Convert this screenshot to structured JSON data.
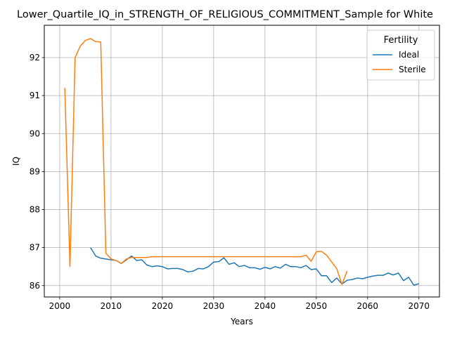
{
  "chart_data": {
    "type": "line",
    "title": "Lower_Quartile_IQ_in_STRENGTH_OF_RELIGIOUS_COMMITMENT_Sample for White",
    "xlabel": "Years",
    "ylabel": "IQ",
    "xlim": [
      1997,
      2074
    ],
    "ylim": [
      85.7,
      92.85
    ],
    "xticks": [
      2000,
      2010,
      2020,
      2030,
      2040,
      2050,
      2060,
      2070
    ],
    "yticks": [
      86,
      87,
      88,
      89,
      90,
      91,
      92
    ],
    "grid": true,
    "legend": {
      "title": "Fertility",
      "placement": "top-right"
    },
    "series": [
      {
        "name": "Ideal",
        "color": "#1f77b4",
        "x": [
          2006,
          2007,
          2008,
          2009,
          2010,
          2011,
          2012,
          2013,
          2014,
          2015,
          2016,
          2017,
          2018,
          2019,
          2020,
          2021,
          2022,
          2023,
          2024,
          2025,
          2026,
          2027,
          2028,
          2029,
          2030,
          2031,
          2032,
          2033,
          2034,
          2035,
          2036,
          2037,
          2038,
          2039,
          2040,
          2041,
          2042,
          2043,
          2044,
          2045,
          2046,
          2047,
          2048,
          2049,
          2050,
          2051,
          2052,
          2053,
          2054,
          2055,
          2056,
          2057,
          2058,
          2059,
          2060,
          2061,
          2062,
          2063,
          2064,
          2065,
          2066,
          2067,
          2068,
          2069,
          2070
        ],
        "y": [
          87.0,
          86.78,
          86.72,
          86.7,
          86.68,
          86.66,
          86.58,
          86.68,
          86.78,
          86.66,
          86.68,
          86.54,
          86.5,
          86.52,
          86.5,
          86.44,
          86.45,
          86.45,
          86.42,
          86.36,
          86.38,
          86.45,
          86.44,
          86.5,
          86.62,
          86.63,
          86.73,
          86.56,
          86.6,
          86.5,
          86.53,
          86.47,
          86.47,
          86.43,
          86.48,
          86.44,
          86.5,
          86.46,
          86.56,
          86.5,
          86.5,
          86.47,
          86.53,
          86.42,
          86.44,
          86.26,
          86.26,
          86.08,
          86.2,
          86.04,
          86.14,
          86.16,
          86.2,
          86.18,
          86.22,
          86.25,
          86.27,
          86.27,
          86.33,
          86.28,
          86.33,
          86.13,
          86.22,
          86.01,
          86.05
        ]
      },
      {
        "name": "Sterile",
        "color": "#ff7f0e",
        "x": [
          2001,
          2002,
          2003,
          2004,
          2005,
          2006,
          2007,
          2008,
          2009,
          2010,
          2011,
          2012,
          2013,
          2014,
          2015,
          2016,
          2017,
          2018,
          2019,
          2020,
          2021,
          2022,
          2023,
          2024,
          2025,
          2026,
          2027,
          2028,
          2029,
          2030,
          2031,
          2032,
          2033,
          2034,
          2035,
          2036,
          2037,
          2038,
          2039,
          2040,
          2041,
          2042,
          2043,
          2044,
          2045,
          2046,
          2047,
          2048,
          2049,
          2050,
          2051,
          2052,
          2053,
          2054,
          2055,
          2056
        ],
        "y": [
          91.2,
          86.5,
          92.0,
          92.3,
          92.45,
          92.5,
          92.42,
          92.41,
          86.85,
          86.7,
          86.66,
          86.58,
          86.7,
          86.74,
          86.74,
          86.74,
          86.74,
          86.76,
          86.76,
          86.76,
          86.76,
          86.76,
          86.76,
          86.76,
          86.76,
          86.76,
          86.76,
          86.76,
          86.76,
          86.76,
          86.76,
          86.76,
          86.76,
          86.76,
          86.76,
          86.76,
          86.76,
          86.76,
          86.76,
          86.76,
          86.76,
          86.76,
          86.76,
          86.76,
          86.76,
          86.76,
          86.76,
          86.8,
          86.64,
          86.89,
          86.9,
          86.8,
          86.62,
          86.44,
          86.03,
          86.38
        ]
      }
    ]
  }
}
